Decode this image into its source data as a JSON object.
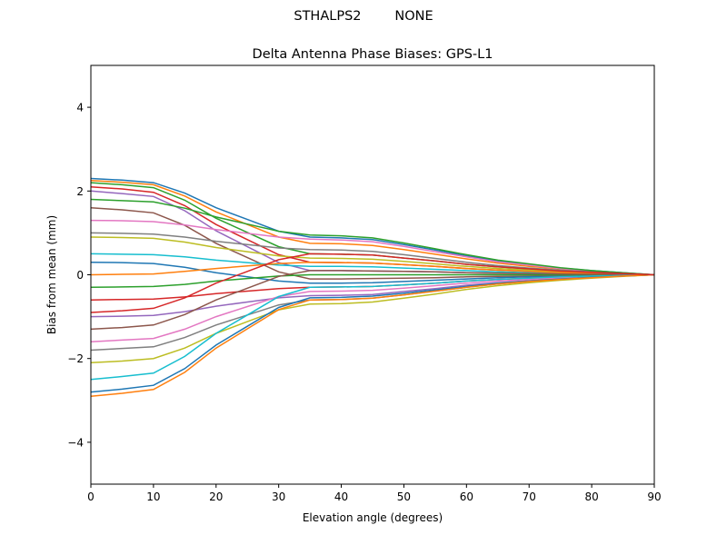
{
  "chart_data": {
    "type": "line",
    "suptitle": "STHALPS2        NONE",
    "title": "Delta Antenna Phase Biases: GPS-L1",
    "xlabel": "Elevation angle (degrees)",
    "ylabel": "Bias from mean (mm)",
    "xlim": [
      0,
      90
    ],
    "ylim": [
      -5,
      5
    ],
    "xticks": [
      0,
      10,
      20,
      30,
      40,
      50,
      60,
      70,
      80,
      90
    ],
    "yticks": [
      -4,
      -2,
      0,
      2,
      4
    ],
    "ytick_labels": [
      "−4",
      "−2",
      "0",
      "2",
      "4"
    ],
    "grid": false,
    "legend": "none",
    "colors": [
      "#1f77b4",
      "#ff7f0e",
      "#2ca02c",
      "#d62728",
      "#9467bd",
      "#8c564b",
      "#e377c2",
      "#7f7f7f",
      "#bcbd22",
      "#17becf"
    ],
    "x": [
      0,
      5,
      10,
      15,
      20,
      25,
      30,
      35,
      40,
      45,
      50,
      55,
      60,
      65,
      70,
      75,
      80,
      85,
      90
    ],
    "series": [
      {
        "values": [
          2.3,
          2.26,
          2.2,
          1.95,
          1.6,
          1.32,
          1.04,
          0.9,
          0.88,
          0.84,
          0.72,
          0.59,
          0.45,
          0.33,
          0.24,
          0.16,
          0.1,
          0.05,
          0
        ]
      },
      {
        "values": [
          2.25,
          2.21,
          2.15,
          1.88,
          1.5,
          1.2,
          0.9,
          0.75,
          0.74,
          0.7,
          0.6,
          0.49,
          0.38,
          0.28,
          0.2,
          0.14,
          0.08,
          0.04,
          0
        ]
      },
      {
        "values": [
          2.2,
          2.15,
          2.08,
          1.78,
          1.35,
          1.01,
          0.67,
          0.5,
          0.49,
          0.47,
          0.4,
          0.33,
          0.25,
          0.19,
          0.14,
          0.09,
          0.06,
          0.03,
          0
        ]
      },
      {
        "values": [
          2.1,
          2.05,
          1.97,
          1.65,
          1.2,
          0.84,
          0.48,
          0.3,
          0.29,
          0.28,
          0.24,
          0.2,
          0.15,
          0.11,
          0.08,
          0.05,
          0.03,
          0.02,
          0
        ]
      },
      {
        "values": [
          2.0,
          1.94,
          1.87,
          1.53,
          1.05,
          0.67,
          0.29,
          0.1,
          0.1,
          0.09,
          0.08,
          0.07,
          0.05,
          0.04,
          0.03,
          0.02,
          0.01,
          0.01,
          0
        ]
      },
      {
        "values": [
          1.6,
          1.55,
          1.48,
          1.18,
          0.75,
          0.41,
          0.07,
          -0.1,
          -0.1,
          -0.09,
          -0.08,
          -0.07,
          -0.05,
          -0.04,
          -0.03,
          -0.02,
          -0.01,
          -0.01,
          0
        ]
      },
      {
        "values": [
          1.3,
          1.29,
          1.27,
          1.19,
          1.08,
          0.99,
          0.9,
          0.85,
          0.83,
          0.79,
          0.68,
          0.55,
          0.43,
          0.31,
          0.23,
          0.15,
          0.09,
          0.04,
          0
        ]
      },
      {
        "values": [
          1.0,
          0.99,
          0.97,
          0.9,
          0.8,
          0.72,
          0.64,
          0.6,
          0.59,
          0.56,
          0.48,
          0.39,
          0.3,
          0.22,
          0.16,
          0.11,
          0.07,
          0.03,
          0
        ]
      },
      {
        "values": [
          0.9,
          0.89,
          0.87,
          0.78,
          0.65,
          0.55,
          0.45,
          0.4,
          0.39,
          0.37,
          0.32,
          0.26,
          0.2,
          0.15,
          0.11,
          0.07,
          0.04,
          0.02,
          0
        ]
      },
      {
        "values": [
          0.5,
          0.49,
          0.48,
          0.43,
          0.35,
          0.29,
          0.23,
          0.2,
          0.2,
          0.19,
          0.16,
          0.13,
          0.1,
          0.07,
          0.05,
          0.04,
          0.02,
          0.01,
          0
        ]
      },
      {
        "values": [
          0.3,
          0.29,
          0.27,
          0.18,
          0.05,
          -0.05,
          -0.15,
          -0.2,
          -0.2,
          -0.19,
          -0.16,
          -0.13,
          -0.1,
          -0.07,
          -0.05,
          -0.04,
          -0.02,
          -0.01,
          0
        ]
      },
      {
        "values": [
          0,
          0.01,
          0.02,
          0.08,
          0.15,
          0.21,
          0.27,
          0.3,
          0.29,
          0.28,
          0.24,
          0.2,
          0.15,
          0.11,
          0.08,
          0.05,
          0.03,
          0.02,
          0
        ]
      },
      {
        "values": [
          -0.3,
          -0.29,
          -0.28,
          -0.23,
          -0.15,
          -0.09,
          -0.03,
          0,
          0,
          0,
          0,
          0,
          0,
          0,
          0,
          0,
          0,
          0,
          0
        ]
      },
      {
        "values": [
          -0.6,
          -0.59,
          -0.58,
          -0.53,
          -0.45,
          -0.39,
          -0.33,
          -0.3,
          -0.29,
          -0.28,
          -0.24,
          -0.2,
          -0.15,
          -0.11,
          -0.08,
          -0.05,
          -0.03,
          -0.02,
          0
        ]
      },
      {
        "values": [
          -1.0,
          -0.99,
          -0.97,
          -0.88,
          -0.75,
          -0.65,
          -0.55,
          -0.5,
          -0.49,
          -0.47,
          -0.4,
          -0.33,
          -0.25,
          -0.19,
          -0.14,
          -0.09,
          -0.06,
          -0.03,
          0
        ]
      },
      {
        "values": [
          -1.3,
          -1.26,
          -1.2,
          -0.95,
          -0.6,
          -0.32,
          -0.04,
          0.1,
          0.1,
          0.09,
          0.08,
          0.07,
          0.05,
          0.04,
          0.03,
          0.02,
          0.01,
          0.01,
          0
        ]
      },
      {
        "values": [
          -1.6,
          -1.56,
          -1.52,
          -1.3,
          -1.0,
          -0.76,
          -0.52,
          -0.4,
          -0.39,
          -0.37,
          -0.32,
          -0.26,
          -0.2,
          -0.15,
          -0.11,
          -0.07,
          -0.04,
          -0.02,
          0
        ]
      },
      {
        "values": [
          -1.8,
          -1.76,
          -1.72,
          -1.5,
          -1.2,
          -0.96,
          -0.72,
          -0.6,
          -0.59,
          -0.56,
          -0.48,
          -0.39,
          -0.3,
          -0.22,
          -0.16,
          -0.11,
          -0.07,
          -0.03,
          0
        ]
      },
      {
        "values": [
          -2.1,
          -2.06,
          -2.0,
          -1.75,
          -1.4,
          -1.12,
          -0.84,
          -0.7,
          -0.69,
          -0.65,
          -0.56,
          -0.46,
          -0.35,
          -0.26,
          -0.19,
          -0.13,
          -0.08,
          -0.04,
          0
        ]
      },
      {
        "values": [
          -2.5,
          -2.43,
          -2.35,
          -1.95,
          -1.4,
          -0.96,
          -0.52,
          -0.3,
          -0.29,
          -0.28,
          -0.24,
          -0.2,
          -0.15,
          -0.11,
          -0.08,
          -0.05,
          -0.03,
          -0.02,
          0
        ]
      },
      {
        "values": [
          -2.8,
          -2.73,
          -2.64,
          -2.24,
          -1.68,
          -1.23,
          -0.78,
          -0.55,
          -0.54,
          -0.51,
          -0.44,
          -0.36,
          -0.28,
          -0.2,
          -0.15,
          -0.1,
          -0.06,
          -0.03,
          0
        ]
      },
      {
        "values": [
          -2.9,
          -2.83,
          -2.74,
          -2.33,
          -1.75,
          -1.29,
          -0.83,
          -0.6,
          -0.59,
          -0.56,
          -0.48,
          -0.39,
          -0.3,
          -0.22,
          -0.16,
          -0.11,
          -0.07,
          -0.03,
          0
        ]
      },
      {
        "values": [
          1.8,
          1.77,
          1.74,
          1.59,
          1.38,
          1.21,
          1.04,
          0.95,
          0.93,
          0.88,
          0.76,
          0.62,
          0.48,
          0.35,
          0.26,
          0.17,
          0.1,
          0.05,
          0
        ]
      },
      {
        "values": [
          -0.9,
          -0.86,
          -0.8,
          -0.55,
          -0.2,
          0.08,
          0.36,
          0.5,
          0.49,
          0.47,
          0.4,
          0.33,
          0.25,
          0.19,
          0.14,
          0.09,
          0.06,
          0.03,
          0
        ]
      }
    ]
  }
}
